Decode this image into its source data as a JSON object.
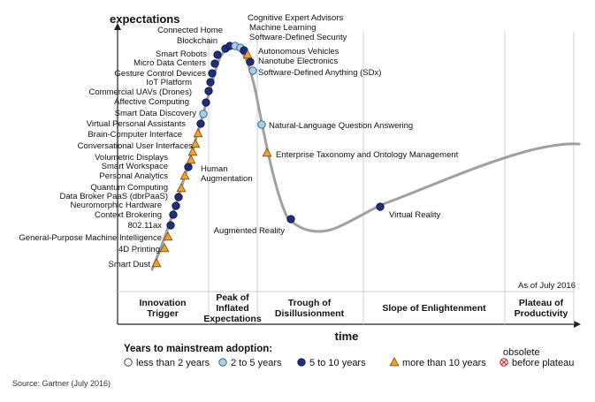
{
  "chart_data": {
    "type": "scatter",
    "subtype": "hype-cycle",
    "ylabel": "expectations",
    "xlabel": "time",
    "as_of": "As of July 2016",
    "source": "Source: Gartner (July 2016)",
    "phases": [
      {
        "lines": [
          "Innovation",
          "Trigger"
        ]
      },
      {
        "lines": [
          "Peak of",
          "Inflated",
          "Expectations"
        ]
      },
      {
        "lines": [
          "Trough of",
          "Disillusionment"
        ]
      },
      {
        "lines": [
          "Slope of Enlightenment"
        ]
      },
      {
        "lines": [
          "Plateau of",
          "Productivity"
        ]
      }
    ],
    "legend": {
      "title": "Years to mainstream adoption:",
      "items": [
        {
          "key": "lt2",
          "label": "less than 2 years",
          "marker": "circle",
          "color": "#ffffff"
        },
        {
          "key": "2to5",
          "label": "2 to 5 years",
          "marker": "circle",
          "color": "#a9cfe8"
        },
        {
          "key": "5to10",
          "label": "5 to 10 years",
          "marker": "circle",
          "color": "#1f2f7a"
        },
        {
          "key": "gt10",
          "label": "more than 10 years",
          "marker": "triangle",
          "color": "#f0a030"
        },
        {
          "key": "obsolete",
          "label_lines": [
            "obsolete",
            "before plateau"
          ],
          "marker": "crossed-circle",
          "color": "#d9312b"
        }
      ]
    },
    "curve_color": "#a0a0a0",
    "technologies": [
      {
        "name": "Smart Dust",
        "phase_pos": 0.06,
        "adoption": "gt10"
      },
      {
        "name": "4D Printing",
        "phase_pos": 0.09,
        "adoption": "gt10"
      },
      {
        "name": "General-Purpose Machine Intelligence",
        "phase_pos": 0.11,
        "adoption": "gt10"
      },
      {
        "name": "802.11ax",
        "phase_pos": 0.13,
        "adoption": "5to10"
      },
      {
        "name": "Context Brokering",
        "phase_pos": 0.15,
        "adoption": "5to10"
      },
      {
        "name": "Neuromorphic Hardware",
        "phase_pos": 0.16,
        "adoption": "5to10"
      },
      {
        "name": "Data Broker PaaS (dbrPaaS)",
        "phase_pos": 0.17,
        "adoption": "5to10"
      },
      {
        "name": "Quantum Computing",
        "phase_pos": 0.18,
        "adoption": "gt10"
      },
      {
        "name": "Personal Analytics",
        "phase_pos": 0.19,
        "adoption": "gt10"
      },
      {
        "name": "Smart Workspace",
        "phase_pos": 0.2,
        "adoption": "5to10"
      },
      {
        "name": "Volumetric Displays",
        "phase_pos": 0.21,
        "adoption": "gt10"
      },
      {
        "name": "Human Augmentation",
        "phase_pos": 0.215,
        "adoption": "gt10"
      },
      {
        "name": "Conversational User Interfaces",
        "phase_pos": 0.22,
        "adoption": "gt10"
      },
      {
        "name": "Brain-Computer Interface",
        "phase_pos": 0.23,
        "adoption": "gt10"
      },
      {
        "name": "Virtual Personal Assistants",
        "phase_pos": 0.24,
        "adoption": "5to10"
      },
      {
        "name": "Smart Data Discovery",
        "phase_pos": 0.25,
        "adoption": "2to5"
      },
      {
        "name": "Affective Computing",
        "phase_pos": 0.26,
        "adoption": "5to10"
      },
      {
        "name": "Commercial UAVs (Drones)",
        "phase_pos": 0.27,
        "adoption": "5to10"
      },
      {
        "name": "IoT Platform",
        "phase_pos": 0.28,
        "adoption": "5to10"
      },
      {
        "name": "Gesture Control Devices",
        "phase_pos": 0.29,
        "adoption": "5to10"
      },
      {
        "name": "Micro Data Centers",
        "phase_pos": 0.3,
        "adoption": "5to10"
      },
      {
        "name": "Smart Robots",
        "phase_pos": 0.31,
        "adoption": "5to10"
      },
      {
        "name": "Blockchain",
        "phase_pos": 0.33,
        "adoption": "5to10"
      },
      {
        "name": "Connected Home",
        "phase_pos": 0.35,
        "adoption": "5to10"
      },
      {
        "name": "Cognitive Expert Advisors",
        "phase_pos": 0.37,
        "adoption": "2to5"
      },
      {
        "name": "Machine Learning",
        "phase_pos": 0.39,
        "adoption": "2to5"
      },
      {
        "name": "Software-Defined Security",
        "phase_pos": 0.41,
        "adoption": "5to10"
      },
      {
        "name": "Autonomous Vehicles",
        "phase_pos": 0.43,
        "adoption": "gt10"
      },
      {
        "name": "Nanotube Electronics",
        "phase_pos": 0.45,
        "adoption": "5to10"
      },
      {
        "name": "Software-Defined Anything (SDx)",
        "phase_pos": 0.47,
        "adoption": "2to5"
      },
      {
        "name": "Natural-Language Question Answering",
        "phase_pos": 0.52,
        "adoption": "2to5"
      },
      {
        "name": "Enterprise Taxonomy and Ontology Management",
        "phase_pos": 0.55,
        "adoption": "gt10"
      },
      {
        "name": "Augmented Reality",
        "phase_pos": 0.6,
        "adoption": "5to10"
      },
      {
        "name": "Virtual Reality",
        "phase_pos": 0.72,
        "adoption": "5to10"
      }
    ]
  }
}
